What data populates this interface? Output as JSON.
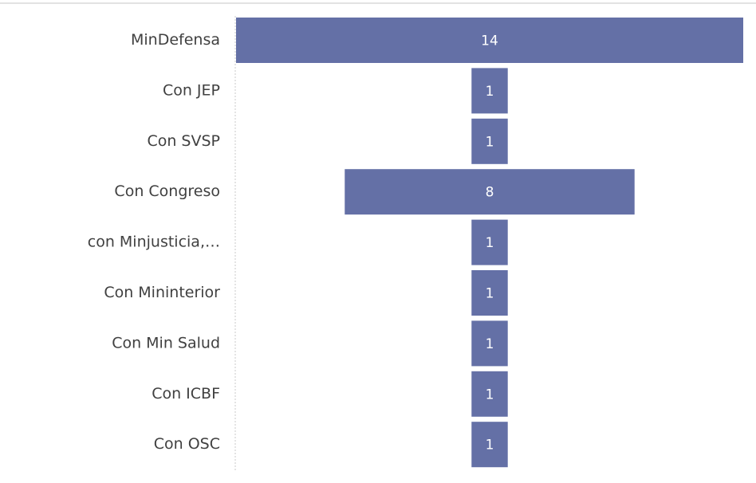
{
  "chart_data": {
    "type": "funnel",
    "categories": [
      "MinDefensa",
      "Con JEP",
      "Con SVSP",
      "Con Congreso",
      "con Minjusticia,…",
      "Con Mininterior",
      "Con Min Salud",
      "Con ICBF",
      "Con OSC"
    ],
    "values": [
      14,
      1,
      1,
      8,
      1,
      1,
      1,
      1,
      1
    ],
    "color": "#6470a6"
  }
}
